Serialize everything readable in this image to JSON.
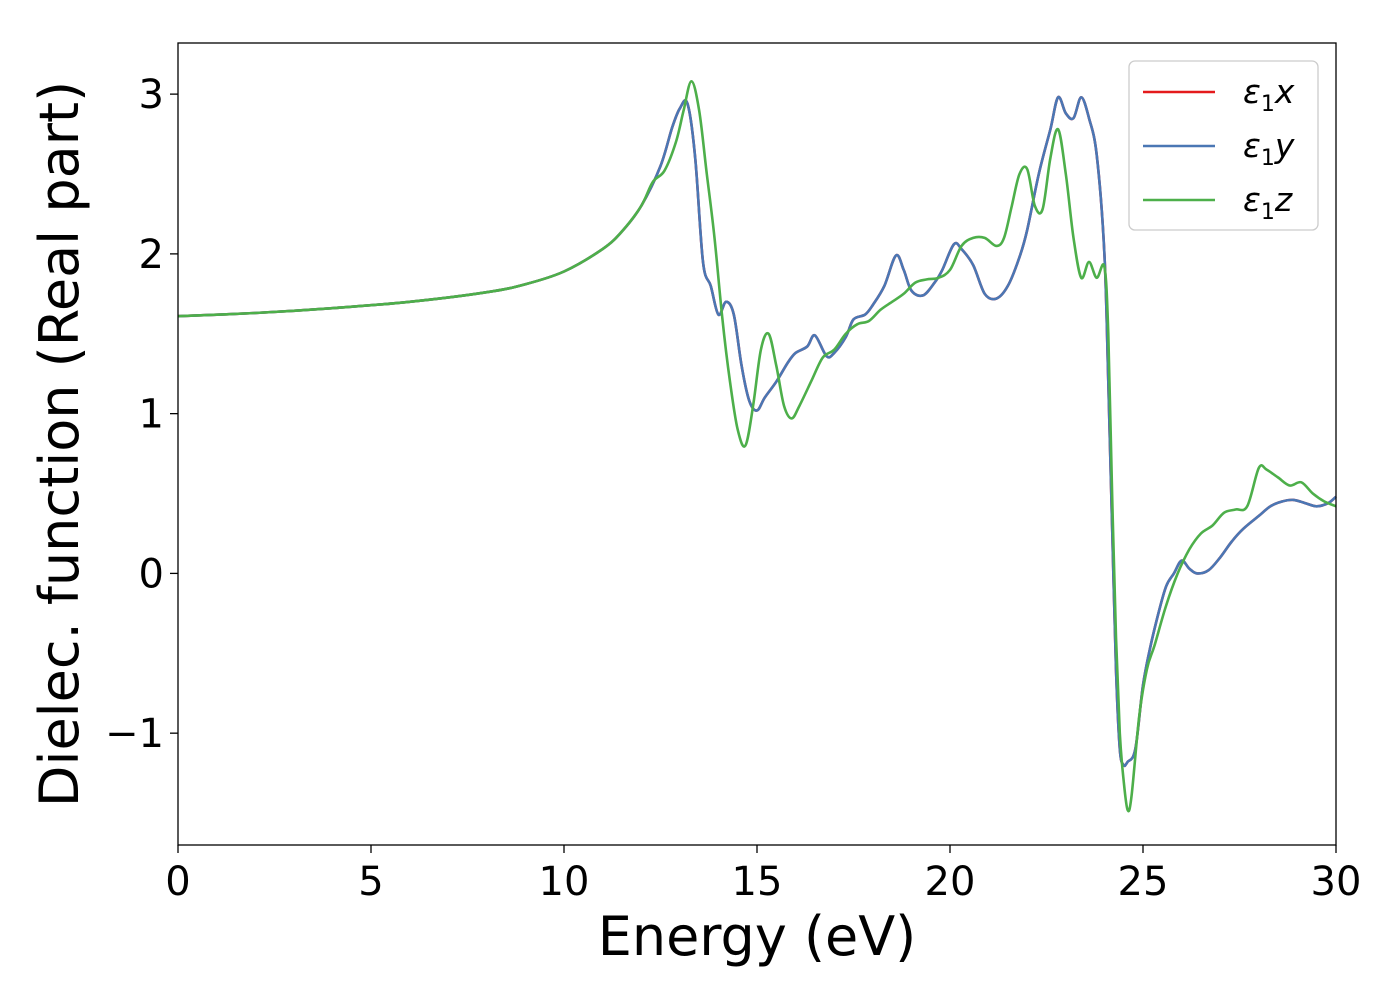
{
  "chart_data": {
    "type": "line",
    "title": "",
    "xlabel": "Energy (eV)",
    "ylabel": "Dielec. function (Real part)",
    "xlim": [
      0,
      30
    ],
    "ylim": [
      -1.7,
      3.32
    ],
    "xticks": [
      0,
      5,
      10,
      15,
      20,
      25,
      30
    ],
    "xtick_labels": [
      "0",
      "5",
      "10",
      "15",
      "20",
      "25",
      "30"
    ],
    "yticks": [
      -1,
      0,
      1,
      2,
      3
    ],
    "ytick_labels": [
      "−1",
      "0",
      "1",
      "2",
      "3"
    ],
    "grid": false,
    "legend": {
      "position": "top-right",
      "entries": [
        {
          "symbol": "ε",
          "sub": "1",
          "var": "x",
          "color": "#e41a1c"
        },
        {
          "symbol": "ε",
          "sub": "1",
          "var": "y",
          "color": "#4a77b4"
        },
        {
          "symbol": "ε",
          "sub": "1",
          "var": "z",
          "color": "#4daf4a"
        }
      ]
    },
    "series": [
      {
        "name": "ε1x",
        "color": "#e41a1c",
        "x": [
          0,
          2,
          4,
          6,
          8,
          9,
          10,
          11,
          11.5,
          12,
          12.5,
          12.8,
          13.0,
          13.2,
          13.4,
          13.6,
          13.8,
          14.0,
          14.2,
          14.4,
          14.6,
          14.8,
          15.0,
          15.2,
          15.5,
          15.8,
          16.0,
          16.3,
          16.5,
          16.8,
          17.0,
          17.3,
          17.5,
          17.8,
          18.0,
          18.3,
          18.6,
          18.8,
          19.0,
          19.3,
          19.6,
          19.8,
          20.1,
          20.3,
          20.6,
          20.9,
          21.2,
          21.5,
          21.8,
          22.0,
          22.3,
          22.6,
          22.8,
          23.0,
          23.2,
          23.4,
          23.6,
          23.8,
          24.0,
          24.1,
          24.2,
          24.3,
          24.4,
          24.5,
          24.6,
          24.8,
          25.0,
          25.2,
          25.4,
          25.6,
          25.8,
          26.0,
          26.2,
          26.4,
          26.7,
          27.0,
          27.3,
          27.6,
          28.0,
          28.3,
          28.6,
          28.9,
          29.2,
          29.5,
          29.8,
          30.0
        ],
        "y": [
          1.61,
          1.63,
          1.66,
          1.7,
          1.76,
          1.81,
          1.89,
          2.03,
          2.14,
          2.3,
          2.55,
          2.79,
          2.91,
          2.94,
          2.6,
          1.95,
          1.8,
          1.62,
          1.7,
          1.62,
          1.3,
          1.08,
          1.02,
          1.1,
          1.2,
          1.32,
          1.38,
          1.42,
          1.49,
          1.36,
          1.38,
          1.48,
          1.59,
          1.62,
          1.68,
          1.8,
          1.99,
          1.9,
          1.77,
          1.74,
          1.82,
          1.9,
          2.06,
          2.03,
          1.93,
          1.75,
          1.72,
          1.8,
          1.98,
          2.15,
          2.5,
          2.78,
          2.98,
          2.88,
          2.85,
          2.98,
          2.85,
          2.62,
          2.0,
          1.2,
          0.3,
          -0.6,
          -1.1,
          -1.2,
          -1.18,
          -1.1,
          -0.7,
          -0.45,
          -0.25,
          -0.08,
          0.0,
          0.08,
          0.03,
          0.0,
          0.02,
          0.1,
          0.2,
          0.28,
          0.36,
          0.42,
          0.45,
          0.46,
          0.44,
          0.42,
          0.44,
          0.48
        ]
      },
      {
        "name": "ε1y",
        "color": "#4a77b4",
        "x": [
          0,
          2,
          4,
          6,
          8,
          9,
          10,
          11,
          11.5,
          12,
          12.5,
          12.8,
          13.0,
          13.2,
          13.4,
          13.6,
          13.8,
          14.0,
          14.2,
          14.4,
          14.6,
          14.8,
          15.0,
          15.2,
          15.5,
          15.8,
          16.0,
          16.3,
          16.5,
          16.8,
          17.0,
          17.3,
          17.5,
          17.8,
          18.0,
          18.3,
          18.6,
          18.8,
          19.0,
          19.3,
          19.6,
          19.8,
          20.1,
          20.3,
          20.6,
          20.9,
          21.2,
          21.5,
          21.8,
          22.0,
          22.3,
          22.6,
          22.8,
          23.0,
          23.2,
          23.4,
          23.6,
          23.8,
          24.0,
          24.1,
          24.2,
          24.3,
          24.4,
          24.5,
          24.6,
          24.8,
          25.0,
          25.2,
          25.4,
          25.6,
          25.8,
          26.0,
          26.2,
          26.4,
          26.7,
          27.0,
          27.3,
          27.6,
          28.0,
          28.3,
          28.6,
          28.9,
          29.2,
          29.5,
          29.8,
          30.0
        ],
        "y": [
          1.61,
          1.63,
          1.66,
          1.7,
          1.76,
          1.81,
          1.89,
          2.03,
          2.14,
          2.3,
          2.55,
          2.79,
          2.91,
          2.94,
          2.6,
          1.95,
          1.8,
          1.62,
          1.7,
          1.62,
          1.3,
          1.08,
          1.02,
          1.1,
          1.2,
          1.32,
          1.38,
          1.42,
          1.49,
          1.36,
          1.38,
          1.48,
          1.59,
          1.62,
          1.68,
          1.8,
          1.99,
          1.9,
          1.77,
          1.74,
          1.82,
          1.9,
          2.06,
          2.03,
          1.93,
          1.75,
          1.72,
          1.8,
          1.98,
          2.15,
          2.5,
          2.78,
          2.98,
          2.88,
          2.85,
          2.98,
          2.85,
          2.62,
          2.0,
          1.2,
          0.3,
          -0.6,
          -1.1,
          -1.2,
          -1.18,
          -1.1,
          -0.7,
          -0.45,
          -0.25,
          -0.08,
          0.0,
          0.08,
          0.03,
          0.0,
          0.02,
          0.1,
          0.2,
          0.28,
          0.36,
          0.42,
          0.45,
          0.46,
          0.44,
          0.42,
          0.44,
          0.48
        ]
      },
      {
        "name": "ε1z",
        "color": "#4daf4a",
        "x": [
          0,
          2,
          4,
          6,
          8,
          9,
          10,
          11,
          11.5,
          12,
          12.3,
          12.6,
          12.9,
          13.1,
          13.3,
          13.5,
          13.7,
          13.9,
          14.1,
          14.3,
          14.5,
          14.7,
          14.9,
          15.1,
          15.3,
          15.5,
          15.7,
          15.9,
          16.1,
          16.4,
          16.7,
          17.0,
          17.3,
          17.6,
          17.9,
          18.2,
          18.5,
          18.8,
          19.1,
          19.4,
          19.7,
          20.0,
          20.3,
          20.6,
          20.9,
          21.2,
          21.4,
          21.6,
          21.8,
          22.0,
          22.2,
          22.4,
          22.6,
          22.8,
          23.0,
          23.2,
          23.4,
          23.6,
          23.8,
          24.0,
          24.1,
          24.2,
          24.3,
          24.4,
          24.5,
          24.6,
          24.7,
          24.9,
          25.1,
          25.3,
          25.6,
          25.9,
          26.2,
          26.5,
          26.8,
          27.1,
          27.4,
          27.7,
          28.0,
          28.2,
          28.5,
          28.8,
          29.1,
          29.4,
          29.7,
          30.0
        ],
        "y": [
          1.61,
          1.63,
          1.66,
          1.7,
          1.76,
          1.81,
          1.89,
          2.03,
          2.14,
          2.3,
          2.45,
          2.52,
          2.7,
          2.9,
          3.08,
          2.9,
          2.5,
          2.1,
          1.6,
          1.2,
          0.9,
          0.8,
          1.05,
          1.4,
          1.5,
          1.3,
          1.05,
          0.97,
          1.05,
          1.2,
          1.35,
          1.4,
          1.5,
          1.56,
          1.58,
          1.65,
          1.7,
          1.75,
          1.82,
          1.84,
          1.85,
          1.9,
          2.05,
          2.1,
          2.1,
          2.05,
          2.1,
          2.3,
          2.5,
          2.53,
          2.3,
          2.28,
          2.6,
          2.78,
          2.5,
          2.1,
          1.85,
          1.95,
          1.85,
          1.92,
          1.5,
          0.5,
          -0.4,
          -1.0,
          -1.3,
          -1.48,
          -1.4,
          -0.9,
          -0.6,
          -0.45,
          -0.2,
          0.0,
          0.15,
          0.25,
          0.3,
          0.38,
          0.4,
          0.42,
          0.66,
          0.65,
          0.6,
          0.55,
          0.57,
          0.5,
          0.45,
          0.42
        ]
      }
    ]
  }
}
